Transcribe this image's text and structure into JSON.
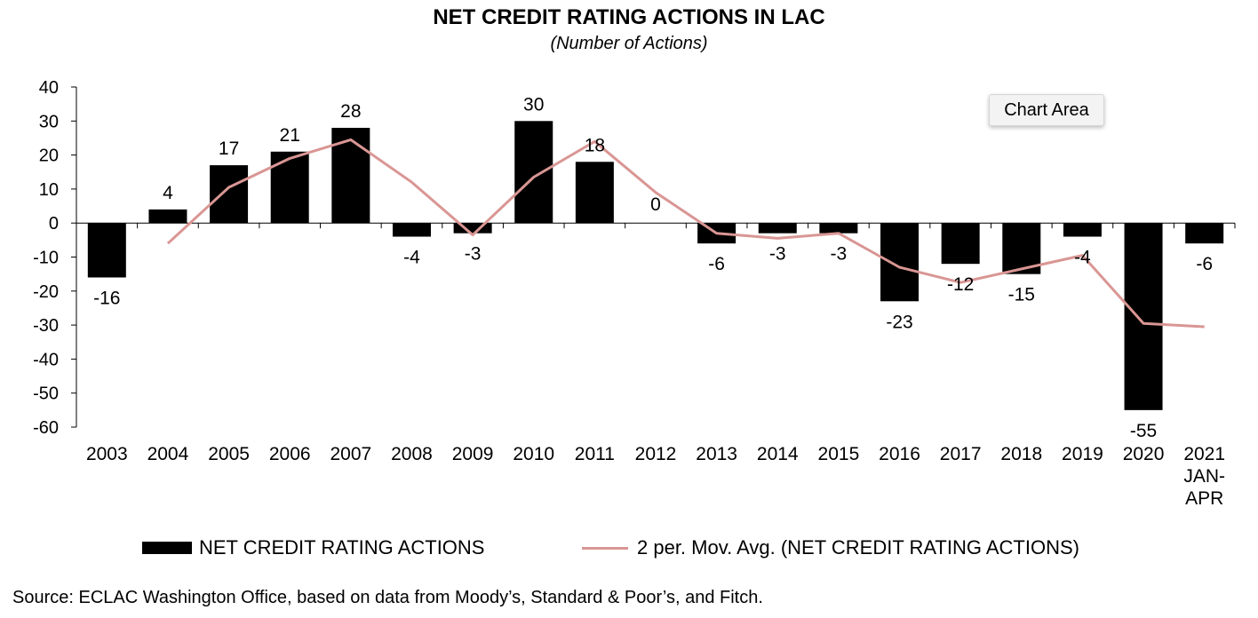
{
  "chart_data": {
    "type": "bar",
    "title": "NET CREDIT RATING ACTIONS IN LAC",
    "subtitle": "(Number of Actions)",
    "categories": [
      "2003",
      "2004",
      "2005",
      "2006",
      "2007",
      "2008",
      "2009",
      "2010",
      "2011",
      "2012",
      "2013",
      "2014",
      "2015",
      "2016",
      "2017",
      "2018",
      "2019",
      "2020",
      "2021 JAN-APR"
    ],
    "category_lines": [
      [
        "2003"
      ],
      [
        "2004"
      ],
      [
        "2005"
      ],
      [
        "2006"
      ],
      [
        "2007"
      ],
      [
        "2008"
      ],
      [
        "2009"
      ],
      [
        "2010"
      ],
      [
        "2011"
      ],
      [
        "2012"
      ],
      [
        "2013"
      ],
      [
        "2014"
      ],
      [
        "2015"
      ],
      [
        "2016"
      ],
      [
        "2017"
      ],
      [
        "2018"
      ],
      [
        "2019"
      ],
      [
        "2020"
      ],
      [
        "2021",
        "JAN-",
        "APR"
      ]
    ],
    "series": [
      {
        "name": "NET CREDIT RATING ACTIONS",
        "kind": "bar",
        "color": "#000000",
        "values": [
          -16,
          4,
          17,
          21,
          28,
          -4,
          -3,
          30,
          18,
          0,
          -6,
          -3,
          -3,
          -23,
          -12,
          -15,
          -4,
          -55,
          -6
        ]
      },
      {
        "name": "2 per. Mov. Avg. (NET CREDIT RATING ACTIONS)",
        "kind": "line",
        "color": "#d99694",
        "values": [
          null,
          -6,
          10.5,
          19,
          24.5,
          12,
          -3.5,
          13.5,
          24,
          9,
          -3,
          -4.5,
          -3,
          -13,
          -17.5,
          -13.5,
          -9.5,
          -29.5,
          -30.5
        ]
      }
    ],
    "data_labels": [
      "-16",
      "4",
      "17",
      "21",
      "28",
      "-4",
      "-3",
      "30",
      "18",
      "0",
      "-6",
      "-3",
      "-3",
      "-23",
      "-12",
      "-15",
      "-4",
      "-55",
      "-6"
    ],
    "ylim": [
      -60,
      40
    ],
    "yticks": [
      40,
      30,
      20,
      10,
      0,
      -10,
      -20,
      -30,
      -40,
      -50,
      -60
    ],
    "grid": false,
    "legend_position": "bottom"
  },
  "tooltip": "Chart Area",
  "source": "Source:  ECLAC Washington Office, based on data from Moody’s, Standard & Poor’s, and Fitch."
}
